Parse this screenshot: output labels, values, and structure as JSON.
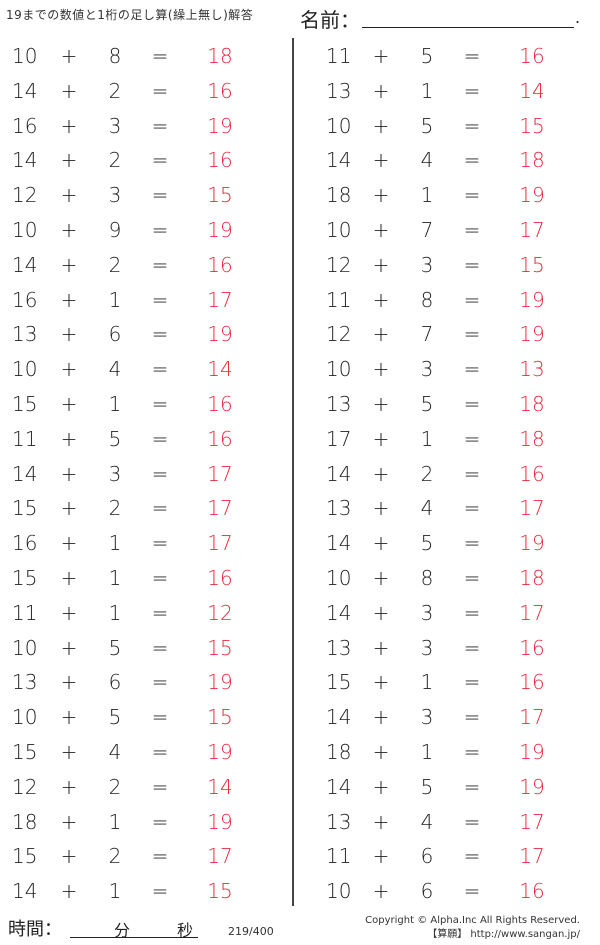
{
  "header": {
    "title": "19までの数値と1桁の足し算(繰上無し)解答",
    "name_label": "名前：",
    "name_end": "."
  },
  "footer": {
    "time_label": "時間：",
    "minutes": "分",
    "seconds": "秒",
    "page": "219/400",
    "copyright": "Copyright © Alpha.Inc All Rights Reserved.",
    "site": "【算願】 http://www.sangan.jp/"
  },
  "symbols": {
    "plus": "+",
    "equals": "="
  },
  "colors": {
    "answer": "#e8283c"
  },
  "problems": {
    "left": [
      [
        10,
        8,
        18
      ],
      [
        14,
        2,
        16
      ],
      [
        16,
        3,
        19
      ],
      [
        14,
        2,
        16
      ],
      [
        12,
        3,
        15
      ],
      [
        10,
        9,
        19
      ],
      [
        14,
        2,
        16
      ],
      [
        16,
        1,
        17
      ],
      [
        13,
        6,
        19
      ],
      [
        10,
        4,
        14
      ],
      [
        15,
        1,
        16
      ],
      [
        11,
        5,
        16
      ],
      [
        14,
        3,
        17
      ],
      [
        15,
        2,
        17
      ],
      [
        16,
        1,
        17
      ],
      [
        15,
        1,
        16
      ],
      [
        11,
        1,
        12
      ],
      [
        10,
        5,
        15
      ],
      [
        13,
        6,
        19
      ],
      [
        10,
        5,
        15
      ],
      [
        15,
        4,
        19
      ],
      [
        12,
        2,
        14
      ],
      [
        18,
        1,
        19
      ],
      [
        15,
        2,
        17
      ],
      [
        14,
        1,
        15
      ]
    ],
    "right": [
      [
        11,
        5,
        16
      ],
      [
        13,
        1,
        14
      ],
      [
        10,
        5,
        15
      ],
      [
        14,
        4,
        18
      ],
      [
        18,
        1,
        19
      ],
      [
        10,
        7,
        17
      ],
      [
        12,
        3,
        15
      ],
      [
        11,
        8,
        19
      ],
      [
        12,
        7,
        19
      ],
      [
        10,
        3,
        13
      ],
      [
        13,
        5,
        18
      ],
      [
        17,
        1,
        18
      ],
      [
        14,
        2,
        16
      ],
      [
        13,
        4,
        17
      ],
      [
        14,
        5,
        19
      ],
      [
        10,
        8,
        18
      ],
      [
        14,
        3,
        17
      ],
      [
        13,
        3,
        16
      ],
      [
        15,
        1,
        16
      ],
      [
        14,
        3,
        17
      ],
      [
        18,
        1,
        19
      ],
      [
        14,
        5,
        19
      ],
      [
        13,
        4,
        17
      ],
      [
        11,
        6,
        17
      ],
      [
        10,
        6,
        16
      ]
    ]
  }
}
